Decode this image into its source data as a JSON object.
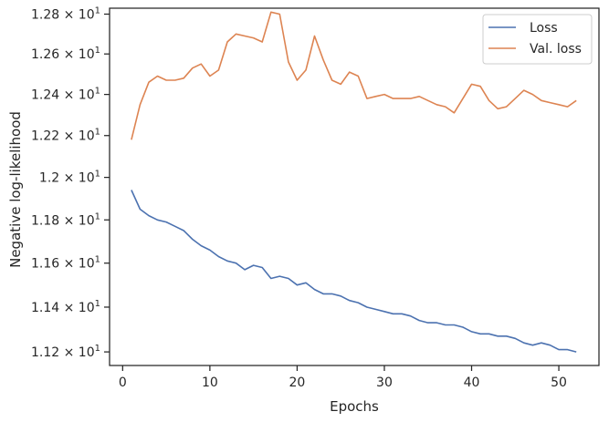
{
  "chart_data": {
    "type": "line",
    "xlabel": "Epochs",
    "ylabel": "Negative log-likelihood",
    "xlim": [
      -1.5,
      54.6
    ],
    "ylim": [
      11.14,
      12.83
    ],
    "xticks": [
      0,
      10,
      20,
      30,
      40,
      50
    ],
    "xtick_labels": [
      "0",
      "10",
      "20",
      "30",
      "40",
      "50"
    ],
    "yticks": [
      11.2,
      11.4,
      11.6,
      11.8,
      12.0,
      12.2,
      12.4,
      12.6,
      12.8
    ],
    "ytick_labels": [
      {
        "mantissa": "1.12",
        "base": "10",
        "exp": "1"
      },
      {
        "mantissa": "1.14",
        "base": "10",
        "exp": "1"
      },
      {
        "mantissa": "1.16",
        "base": "10",
        "exp": "1"
      },
      {
        "mantissa": "1.18",
        "base": "10",
        "exp": "1"
      },
      {
        "mantissa": "1.2",
        "base": "10",
        "exp": "1"
      },
      {
        "mantissa": "1.22",
        "base": "10",
        "exp": "1"
      },
      {
        "mantissa": "1.24",
        "base": "10",
        "exp": "1"
      },
      {
        "mantissa": "1.26",
        "base": "10",
        "exp": "1"
      },
      {
        "mantissa": "1.28",
        "base": "10",
        "exp": "1"
      }
    ],
    "yscale": "log",
    "grid": false,
    "legend_position": "top-right",
    "x": [
      1,
      2,
      3,
      4,
      5,
      6,
      7,
      8,
      9,
      10,
      11,
      12,
      13,
      14,
      15,
      16,
      17,
      18,
      19,
      20,
      21,
      22,
      23,
      24,
      25,
      26,
      27,
      28,
      29,
      30,
      31,
      32,
      33,
      34,
      35,
      36,
      37,
      38,
      39,
      40,
      41,
      42,
      43,
      44,
      45,
      46,
      47,
      48,
      49,
      50,
      51,
      52
    ],
    "series": [
      {
        "name": "Loss",
        "color": "#4c72b0",
        "values": [
          11.94,
          11.85,
          11.82,
          11.8,
          11.79,
          11.77,
          11.75,
          11.71,
          11.68,
          11.66,
          11.63,
          11.61,
          11.6,
          11.57,
          11.59,
          11.58,
          11.53,
          11.54,
          11.53,
          11.5,
          11.51,
          11.48,
          11.46,
          11.46,
          11.45,
          11.43,
          11.42,
          11.4,
          11.39,
          11.38,
          11.37,
          11.37,
          11.36,
          11.34,
          11.33,
          11.33,
          11.32,
          11.32,
          11.31,
          11.29,
          11.28,
          11.28,
          11.27,
          11.27,
          11.26,
          11.24,
          11.23,
          11.24,
          11.23,
          11.21,
          11.21,
          11.2
        ]
      },
      {
        "name": "Val. loss",
        "color": "#dd8452",
        "values": [
          12.18,
          12.35,
          12.46,
          12.49,
          12.47,
          12.47,
          12.48,
          12.53,
          12.55,
          12.49,
          12.52,
          12.66,
          12.7,
          12.69,
          12.68,
          12.66,
          12.81,
          12.8,
          12.56,
          12.47,
          12.52,
          12.69,
          12.57,
          12.47,
          12.45,
          12.51,
          12.49,
          12.38,
          12.39,
          12.4,
          12.38,
          12.38,
          12.38,
          12.39,
          12.37,
          12.35,
          12.34,
          12.31,
          12.38,
          12.45,
          12.44,
          12.37,
          12.33,
          12.34,
          12.38,
          12.42,
          12.4,
          12.37,
          12.36,
          12.35,
          12.34,
          12.37
        ]
      }
    ]
  }
}
